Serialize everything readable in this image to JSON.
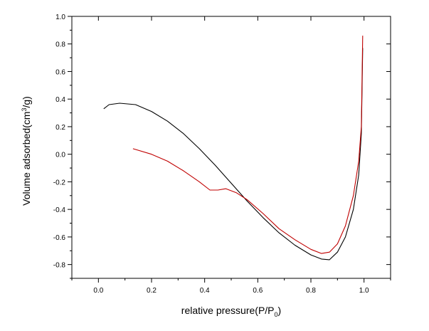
{
  "chart_data": {
    "type": "line",
    "xlabel_parts": [
      "relative pressure(P/P",
      "0",
      ")"
    ],
    "ylabel_parts": [
      "Volume adsorbed(cm",
      "3",
      "/g)"
    ],
    "xlim": [
      -0.1,
      1.1
    ],
    "ylim": [
      -0.9,
      1.0
    ],
    "x_ticks": [
      0.0,
      0.2,
      0.4,
      0.6,
      0.8,
      1.0
    ],
    "x_tick_labels": [
      "0.0",
      "0.2",
      "0.4",
      "0.6",
      "0.8",
      "1.0"
    ],
    "y_ticks": [
      -0.8,
      -0.6,
      -0.4,
      -0.2,
      0.0,
      0.2,
      0.4,
      0.6,
      0.8,
      1.0
    ],
    "y_tick_labels": [
      "-0.8",
      "-0.6",
      "-0.4",
      "-0.2",
      "0.0",
      "0.2",
      "0.4",
      "0.6",
      "0.8",
      "1.0"
    ],
    "grid": false,
    "legend": "none",
    "series": [
      {
        "color": "#000000",
        "x": [
          0.02,
          0.04,
          0.08,
          0.14,
          0.2,
          0.26,
          0.32,
          0.38,
          0.44,
          0.5,
          0.56,
          0.62,
          0.68,
          0.74,
          0.8,
          0.84,
          0.87,
          0.9,
          0.93,
          0.96,
          0.98,
          0.99,
          0.995
        ],
        "y": [
          0.33,
          0.36,
          0.37,
          0.36,
          0.31,
          0.24,
          0.15,
          0.04,
          -0.08,
          -0.21,
          -0.34,
          -0.46,
          -0.57,
          -0.66,
          -0.73,
          -0.76,
          -0.765,
          -0.71,
          -0.6,
          -0.4,
          -0.15,
          0.15,
          0.77
        ]
      },
      {
        "color": "#c00000",
        "x": [
          0.13,
          0.2,
          0.26,
          0.32,
          0.38,
          0.42,
          0.45,
          0.48,
          0.52,
          0.56,
          0.62,
          0.68,
          0.74,
          0.8,
          0.84,
          0.87,
          0.9,
          0.93,
          0.96,
          0.98,
          0.99,
          0.995
        ],
        "y": [
          0.04,
          0.0,
          -0.05,
          -0.12,
          -0.2,
          -0.26,
          -0.26,
          -0.25,
          -0.28,
          -0.33,
          -0.43,
          -0.54,
          -0.62,
          -0.69,
          -0.72,
          -0.71,
          -0.65,
          -0.52,
          -0.3,
          -0.05,
          0.2,
          0.86
        ]
      }
    ]
  }
}
